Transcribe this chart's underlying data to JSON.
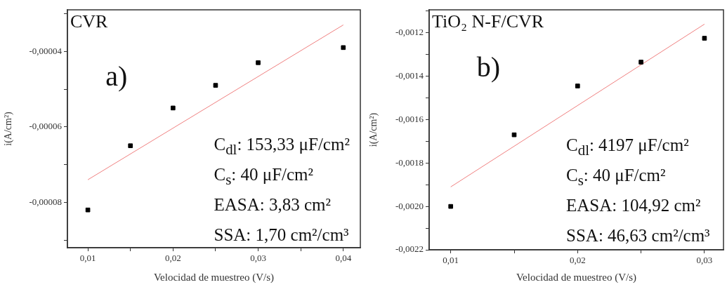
{
  "chart_data": [
    {
      "type": "scatter",
      "title": "CVR",
      "xlabel": "Velocidad de muestreo (V/s)",
      "ylabel": "i(A/cm²)",
      "annotations": [
        "a)",
        "C$_{dl}$: 153,33 μF/cm²",
        "C$_{s}$: 40 μF/cm²",
        "EASA: 3,83 cm²",
        "SSA: 1,70 cm²/cm³"
      ],
      "xlim": [
        0.0076,
        0.042
      ],
      "ylim": [
        -9.2e-05,
        -2.9e-05
      ],
      "xticks": [
        {
          "value": 0.01,
          "label": "0,01"
        },
        {
          "value": 0.015,
          "label": null
        },
        {
          "value": 0.02,
          "label": "0,02"
        },
        {
          "value": 0.025,
          "label": null
        },
        {
          "value": 0.03,
          "label": "0,03"
        },
        {
          "value": 0.035,
          "label": null
        },
        {
          "value": 0.04,
          "label": "0,04"
        }
      ],
      "yticks": [
        {
          "value": -9e-05,
          "label": null
        },
        {
          "value": -8e-05,
          "label": "-0,00008"
        },
        {
          "value": -7e-05,
          "label": null
        },
        {
          "value": -6e-05,
          "label": "-0,00006"
        },
        {
          "value": -5e-05,
          "label": null
        },
        {
          "value": -4e-05,
          "label": "-0,00004"
        },
        {
          "value": -3e-05,
          "label": null
        }
      ],
      "grid": false,
      "series": [
        {
          "color": "#000000",
          "marker": "square",
          "x": [
            0.01,
            0.015,
            0.02,
            0.025,
            0.03,
            0.04
          ],
          "values": [
            -8.2e-05,
            -6.5e-05,
            -5.5e-05,
            -4.9e-05,
            -4.3e-05,
            -3.9e-05
          ]
        },
        {
          "type": "line",
          "color": "#f08080",
          "x": [
            0.01,
            0.04
          ],
          "values": [
            -7.4e-05,
            -3.3e-05
          ]
        }
      ]
    },
    {
      "type": "scatter",
      "title": "TiO₂ N-F/CVR",
      "xlabel": "Velocidad de muestreo (V/s)",
      "ylabel": "i(A/cm²)",
      "annotations": [
        "b)",
        "C$_{dl}$: 4197 μF/cm²",
        "C$_{s}$: 40 μF/cm²",
        "EASA:  104,92 cm²",
        "SSA: 46,63 cm²/cm³"
      ],
      "xlim": [
        0.0083,
        0.0315
      ],
      "ylim": [
        -0.0022,
        -0.001094
      ],
      "xticks": [
        {
          "value": 0.01,
          "label": "0,01"
        },
        {
          "value": 0.015,
          "label": null
        },
        {
          "value": 0.02,
          "label": "0,02"
        },
        {
          "value": 0.025,
          "label": null
        },
        {
          "value": 0.03,
          "label": "0,03"
        }
      ],
      "yticks": [
        {
          "value": -0.0022,
          "label": "-0,0022"
        },
        {
          "value": -0.0021,
          "label": null
        },
        {
          "value": -0.002,
          "label": "-0,0020"
        },
        {
          "value": -0.0019,
          "label": null
        },
        {
          "value": -0.0018,
          "label": "-0,0018"
        },
        {
          "value": -0.0017,
          "label": null
        },
        {
          "value": -0.0016,
          "label": "-0,0016"
        },
        {
          "value": -0.0015,
          "label": null
        },
        {
          "value": -0.0014,
          "label": "-0,0014"
        },
        {
          "value": -0.0013,
          "label": null
        },
        {
          "value": -0.0012,
          "label": "-0,0012"
        },
        {
          "value": -0.0011,
          "label": null
        }
      ],
      "grid": false,
      "series": [
        {
          "color": "#000000",
          "marker": "square",
          "x": [
            0.01,
            0.015,
            0.02,
            0.025,
            0.03
          ],
          "values": [
            -0.002,
            -0.00167,
            -0.001445,
            -0.001335,
            -0.001225
          ]
        },
        {
          "type": "line",
          "color": "#f08080",
          "x": [
            0.01,
            0.03
          ],
          "values": [
            -0.00191,
            -0.00116
          ]
        }
      ]
    }
  ]
}
